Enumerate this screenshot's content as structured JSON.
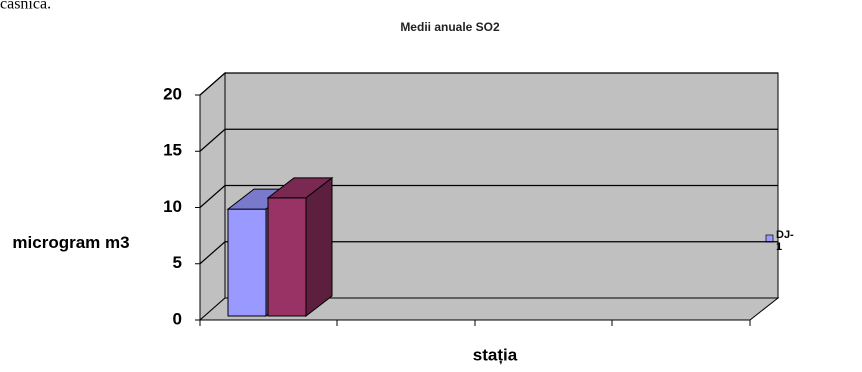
{
  "page_text": "casnica.",
  "chart_data": {
    "type": "bar3d",
    "title": "Medii anuale SO2",
    "y_label": "microgram m3",
    "x_label": "stația",
    "categories": [
      null,
      null,
      null,
      null
    ],
    "series": [
      {
        "name": "DJ-1",
        "color": "#9999ff",
        "values": [
          9.5,
          null,
          null,
          null
        ]
      },
      {
        "color": "#993366",
        "values": [
          10.5,
          null,
          null,
          null
        ]
      }
    ],
    "ylim": [
      0,
      20
    ],
    "yticks": [
      0,
      5,
      10,
      15,
      20
    ],
    "grid": true,
    "legend": "right"
  }
}
